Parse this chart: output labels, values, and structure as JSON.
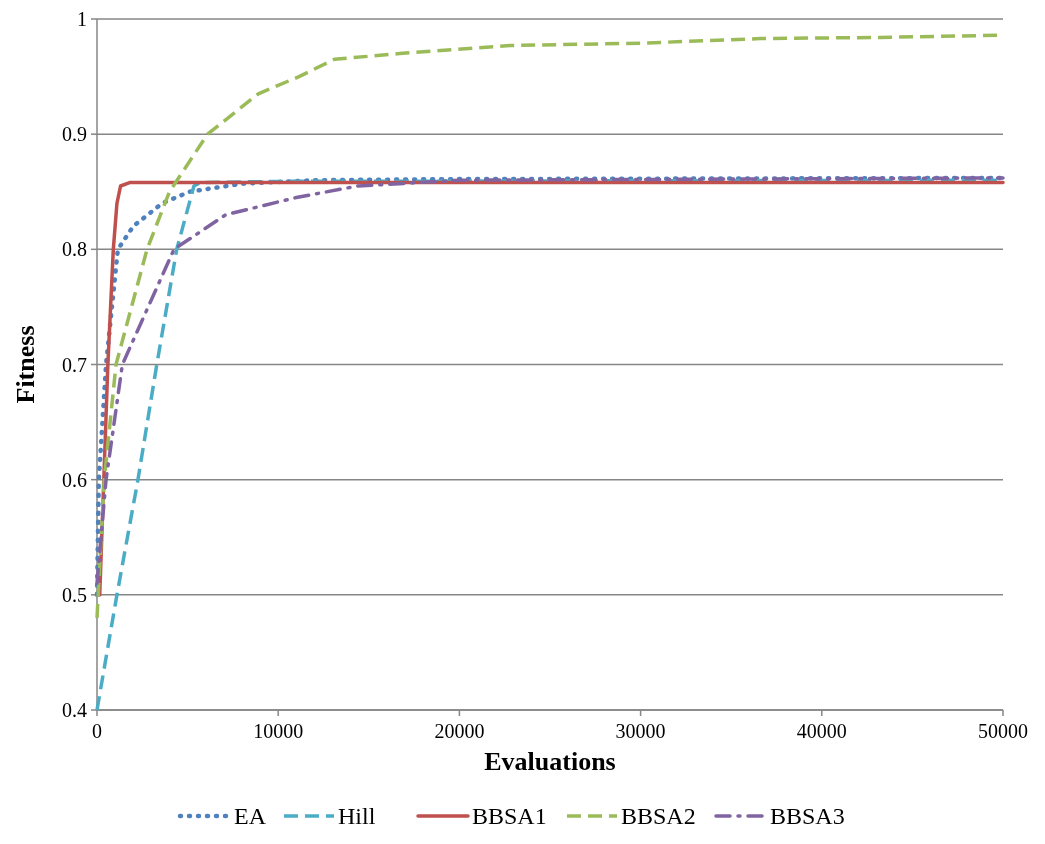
{
  "chart_data": {
    "type": "line",
    "xlabel": "Evaluations",
    "ylabel": "Fitness",
    "xlim": [
      0,
      50000
    ],
    "xticks": [
      0,
      10000,
      20000,
      30000,
      40000,
      50000
    ],
    "ylim": [
      0.4,
      1
    ],
    "yticks": [
      0.4,
      0.5,
      0.6,
      0.7,
      0.8,
      0.9,
      1
    ],
    "grid": "y",
    "legend": "bottom",
    "series": [
      {
        "name": "EA",
        "color": "#4f81bd",
        "line_style": "dotted",
        "x": [
          0,
          100,
          500,
          1150,
          2000,
          3600,
          5100,
          8000,
          12000,
          20000,
          50000
        ],
        "values": [
          0.5,
          0.6,
          0.7,
          0.8,
          0.82,
          0.84,
          0.85,
          0.857,
          0.86,
          0.861,
          0.862
        ]
      },
      {
        "name": "Hill",
        "color": "#4bacc6",
        "line_style": "dashed",
        "x": [
          0,
          1100,
          2260,
          3300,
          4400,
          5350,
          5700,
          10000,
          50000
        ],
        "values": [
          0.4,
          0.5,
          0.6,
          0.7,
          0.8,
          0.855,
          0.858,
          0.859,
          0.86
        ]
      },
      {
        "name": "BBSA1",
        "color": "#c0504d",
        "line_style": "solid",
        "x": [
          150,
          600,
          900,
          1100,
          1300,
          1800,
          50000
        ],
        "values": [
          0.5,
          0.7,
          0.8,
          0.84,
          0.855,
          0.858,
          0.858
        ]
      },
      {
        "name": "BBSA2",
        "color": "#9bbb59",
        "line_style": "dashed",
        "x": [
          0,
          400,
          1050,
          2760,
          4000,
          6100,
          8900,
          11150,
          13100,
          16700,
          22800,
          30000,
          36600,
          43200,
          50000
        ],
        "values": [
          0.48,
          0.6,
          0.7,
          0.8,
          0.85,
          0.9,
          0.935,
          0.95,
          0.965,
          0.97,
          0.977,
          0.979,
          0.983,
          0.984,
          0.986
        ]
      },
      {
        "name": "BBSA3",
        "color": "#8064a2",
        "line_style": "dashdot",
        "x": [
          0,
          500,
          1400,
          4250,
          7100,
          11000,
          14400,
          20000,
          50000
        ],
        "values": [
          0.51,
          0.6,
          0.7,
          0.8,
          0.83,
          0.845,
          0.855,
          0.86,
          0.862
        ]
      }
    ]
  }
}
